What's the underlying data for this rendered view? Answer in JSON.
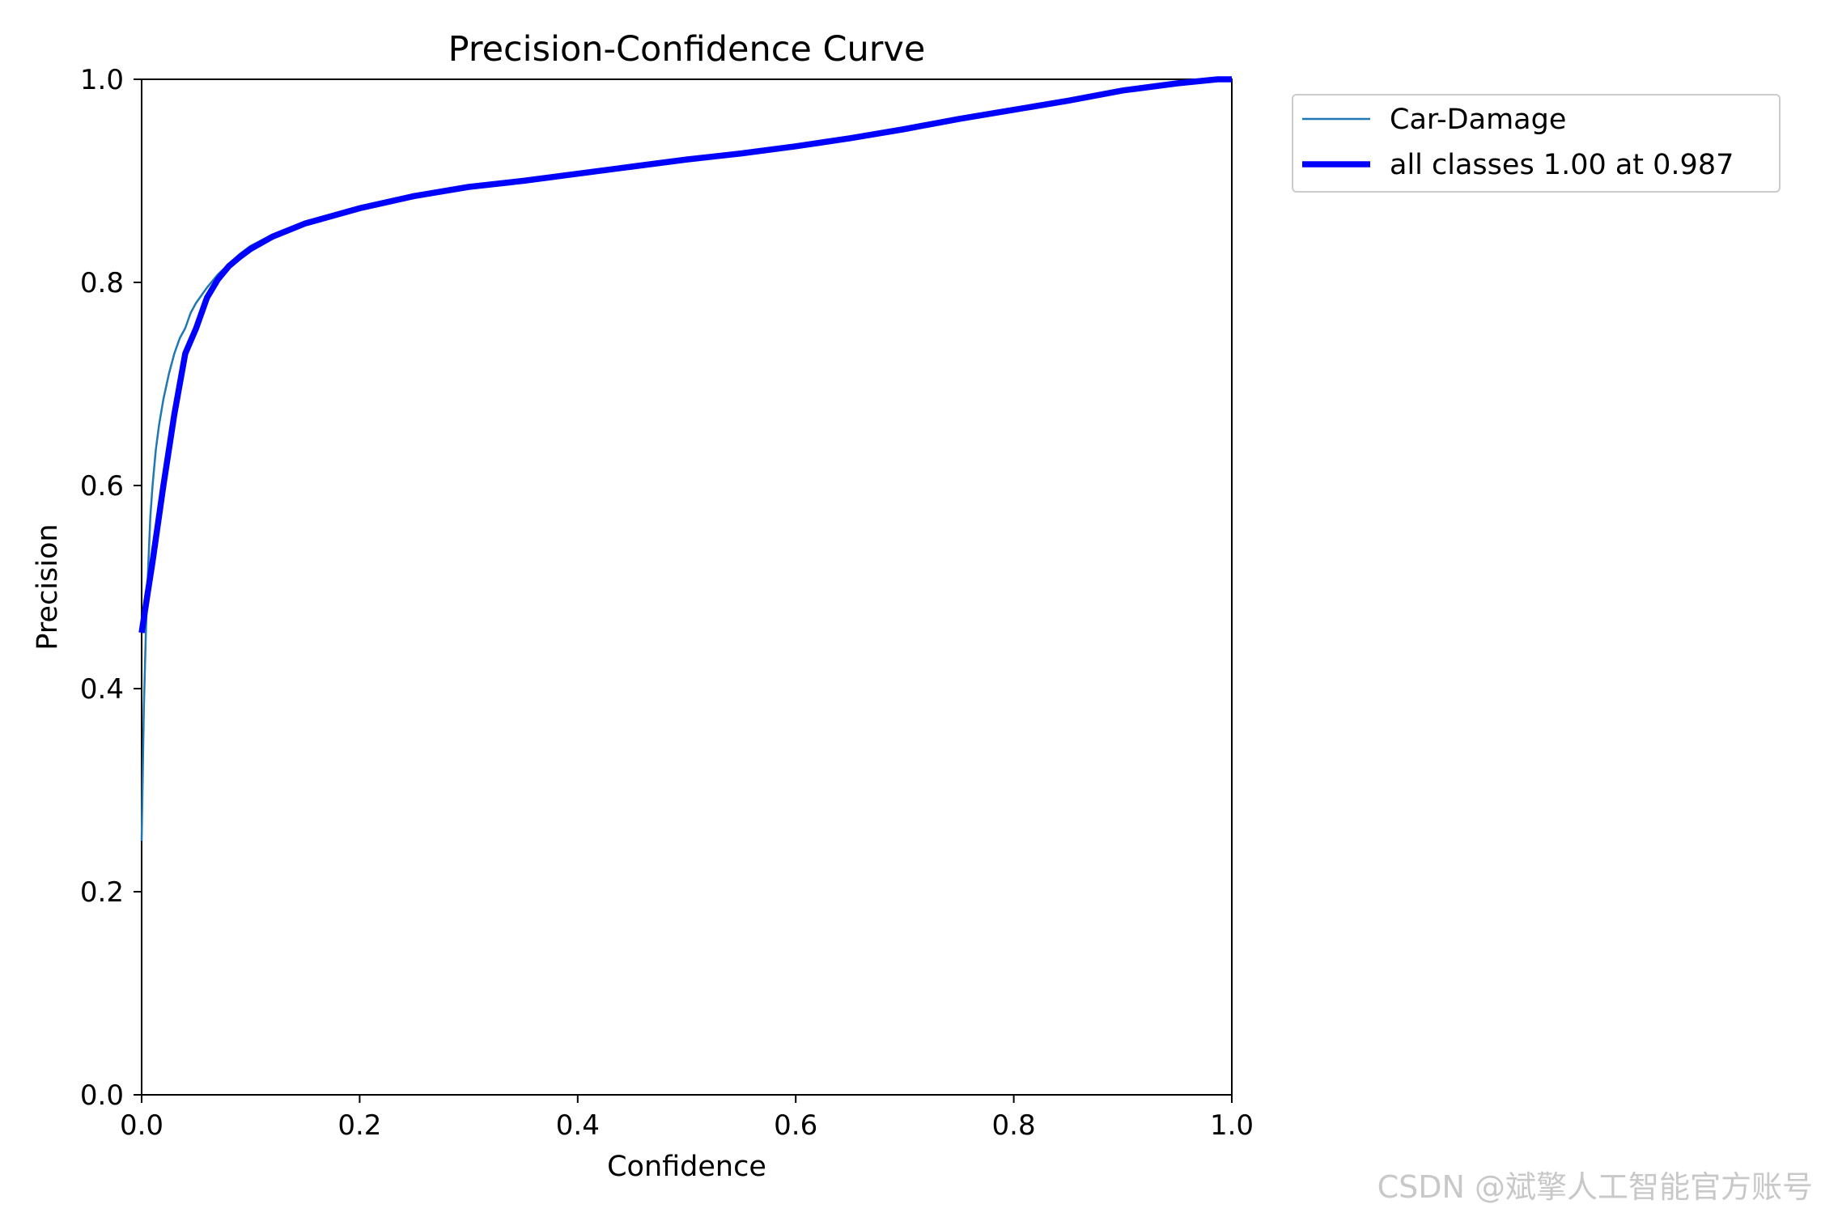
{
  "chart_data": {
    "type": "line",
    "title": "Precision-Confidence Curve",
    "xlabel": "Confidence",
    "ylabel": "Precision",
    "xlim": [
      0.0,
      1.0
    ],
    "ylim": [
      0.0,
      1.0
    ],
    "xticks": [
      "0.0",
      "0.2",
      "0.4",
      "0.6",
      "0.8",
      "1.0"
    ],
    "yticks": [
      "0.0",
      "0.2",
      "0.4",
      "0.6",
      "0.8",
      "1.0"
    ],
    "grid": false,
    "legend_position": "outside-top-right",
    "series": [
      {
        "name": "Car-Damage",
        "color": "#1f77b4",
        "line_width": "thin",
        "points": [
          [
            0.0,
            0.25
          ],
          [
            0.002,
            0.38
          ],
          [
            0.004,
            0.46
          ],
          [
            0.006,
            0.52
          ],
          [
            0.008,
            0.57
          ],
          [
            0.01,
            0.6
          ],
          [
            0.013,
            0.635
          ],
          [
            0.016,
            0.66
          ],
          [
            0.02,
            0.685
          ],
          [
            0.025,
            0.71
          ],
          [
            0.03,
            0.73
          ],
          [
            0.035,
            0.745
          ],
          [
            0.04,
            0.755
          ],
          [
            0.045,
            0.77
          ],
          [
            0.05,
            0.78
          ],
          [
            0.06,
            0.795
          ],
          [
            0.07,
            0.808
          ],
          [
            0.08,
            0.818
          ],
          [
            0.09,
            0.828
          ],
          [
            0.1,
            0.836
          ],
          [
            0.12,
            0.847
          ],
          [
            0.15,
            0.86
          ],
          [
            0.2,
            0.875
          ],
          [
            0.25,
            0.887
          ],
          [
            0.3,
            0.895
          ],
          [
            0.4,
            0.908
          ],
          [
            0.5,
            0.922
          ],
          [
            0.6,
            0.935
          ],
          [
            0.7,
            0.952
          ],
          [
            0.8,
            0.97
          ],
          [
            0.9,
            0.99
          ],
          [
            0.95,
            0.997
          ],
          [
            1.0,
            1.0
          ]
        ]
      },
      {
        "name": "all classes 1.00 at 0.987",
        "color": "#0000ff",
        "line_width": "thick",
        "points": [
          [
            0.0,
            0.455
          ],
          [
            0.005,
            0.49
          ],
          [
            0.01,
            0.525
          ],
          [
            0.02,
            0.6
          ],
          [
            0.03,
            0.67
          ],
          [
            0.04,
            0.73
          ],
          [
            0.05,
            0.755
          ],
          [
            0.055,
            0.77
          ],
          [
            0.06,
            0.785
          ],
          [
            0.07,
            0.803
          ],
          [
            0.08,
            0.816
          ],
          [
            0.09,
            0.825
          ],
          [
            0.1,
            0.833
          ],
          [
            0.12,
            0.845
          ],
          [
            0.15,
            0.858
          ],
          [
            0.2,
            0.873
          ],
          [
            0.25,
            0.885
          ],
          [
            0.3,
            0.894
          ],
          [
            0.35,
            0.9
          ],
          [
            0.4,
            0.907
          ],
          [
            0.45,
            0.914
          ],
          [
            0.5,
            0.921
          ],
          [
            0.55,
            0.927
          ],
          [
            0.6,
            0.934
          ],
          [
            0.65,
            0.942
          ],
          [
            0.7,
            0.951
          ],
          [
            0.75,
            0.961
          ],
          [
            0.8,
            0.97
          ],
          [
            0.85,
            0.979
          ],
          [
            0.9,
            0.989
          ],
          [
            0.95,
            0.996
          ],
          [
            0.987,
            1.0
          ],
          [
            1.0,
            1.0
          ]
        ]
      }
    ]
  },
  "watermark": "CSDN @斌擎人工智能官方账号"
}
